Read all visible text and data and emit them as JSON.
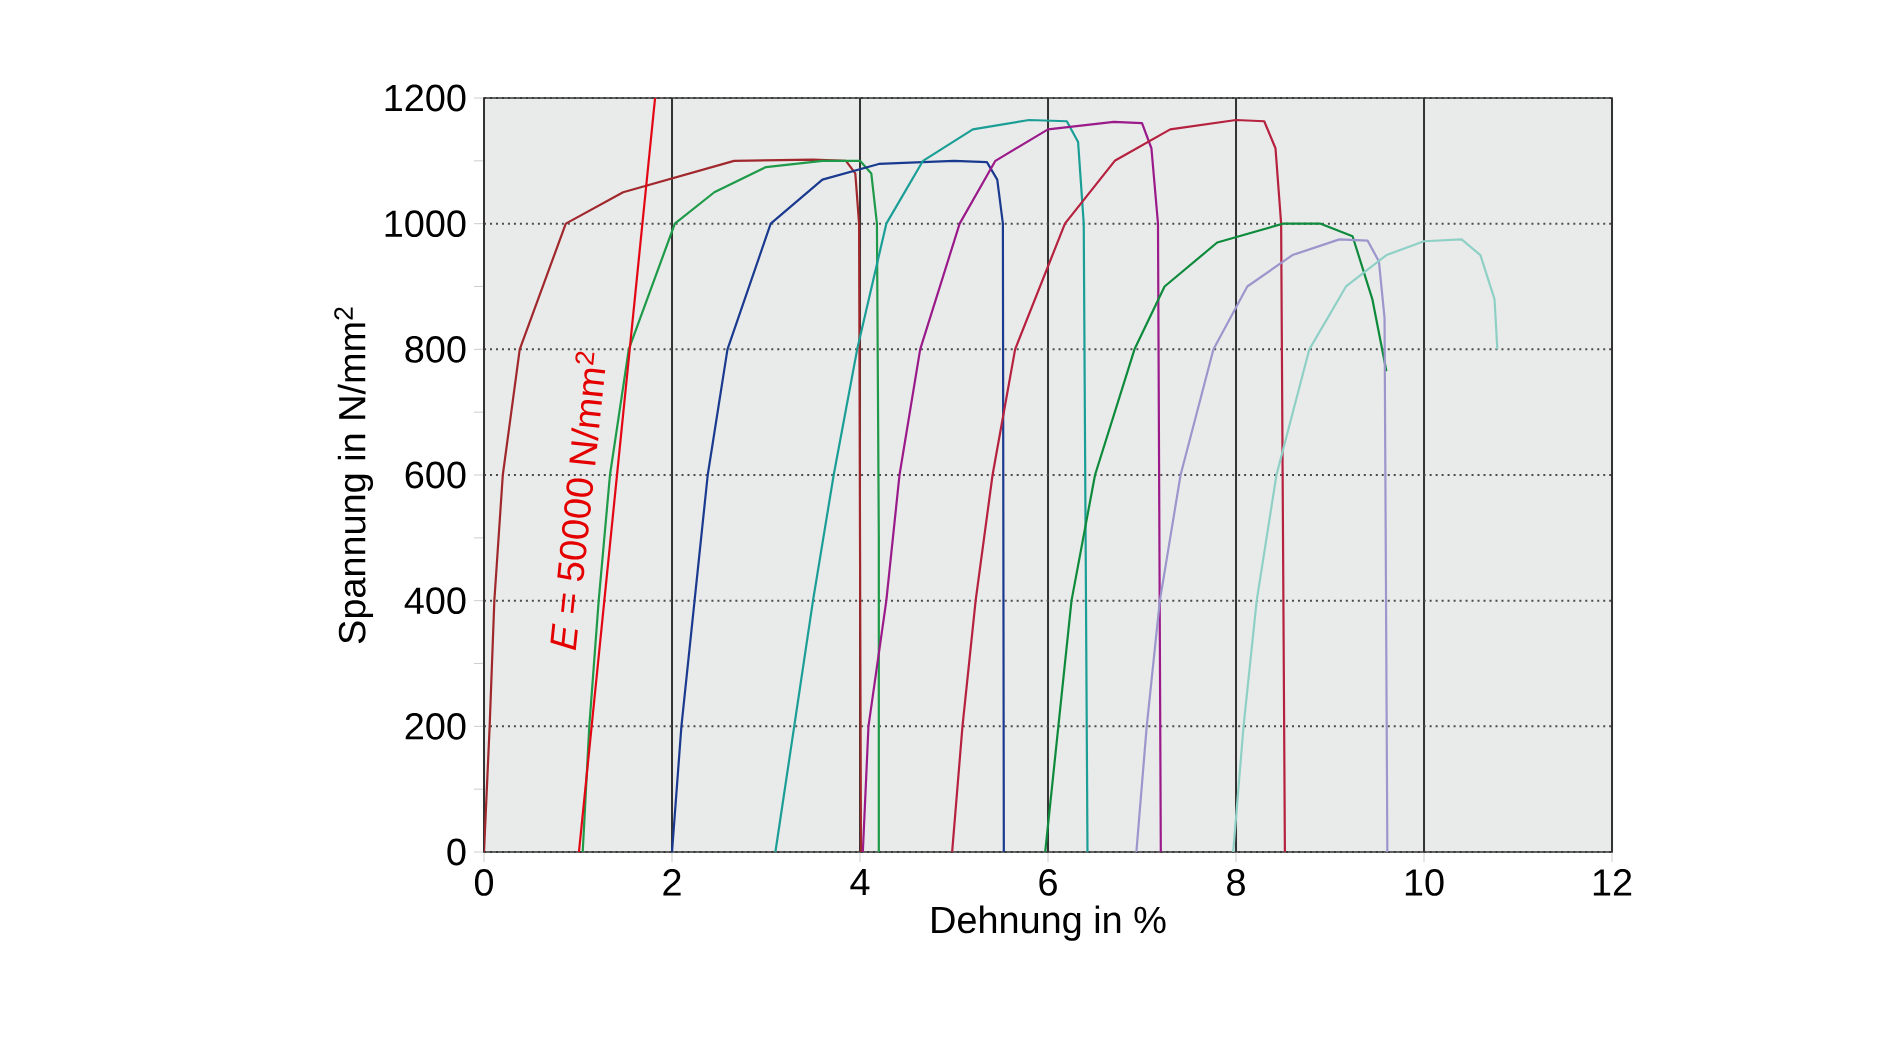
{
  "chart_data": {
    "type": "line",
    "xlabel": "Dehnung in %",
    "ylabel": "Spannung in N/mm$^{2}$",
    "xlim": [
      0,
      12
    ],
    "xticks": [
      0,
      2,
      4,
      6,
      8,
      10,
      12
    ],
    "ylim": [
      0,
      1200
    ],
    "yticks": [
      0,
      200,
      400,
      600,
      800,
      1000,
      1200
    ],
    "grid": true,
    "marker": "none",
    "line_style": "solid",
    "annotations": [
      "*E* = 50000 N/mm$^{2}$"
    ],
    "series": [
      {
        "color": "#a0282d",
        "x": [
          0,
          0.06,
          0.11,
          0.2,
          0.38,
          0.87,
          1.48,
          2.66,
          3.5,
          3.85,
          3.95,
          3.99,
          4.0,
          4.01
        ],
        "values": [
          0,
          200,
          400,
          600,
          800,
          1000,
          1050,
          1100,
          1102,
          1100,
          1080,
          1000,
          500,
          0
        ]
      },
      {
        "color": "#1e9a48",
        "x": [
          1.05,
          1.12,
          1.22,
          1.34,
          1.54,
          2.03,
          2.45,
          3.0,
          3.6,
          4.0,
          4.12,
          4.18,
          4.2,
          4.2
        ],
        "values": [
          0,
          200,
          400,
          600,
          800,
          1000,
          1050,
          1090,
          1100,
          1100,
          1080,
          1000,
          500,
          0
        ]
      },
      {
        "color": "#1a3a8f",
        "x": [
          2.0,
          2.1,
          2.24,
          2.38,
          2.59,
          3.05,
          3.6,
          4.2,
          5.0,
          5.35,
          5.46,
          5.52,
          5.53
        ],
        "values": [
          0,
          200,
          400,
          600,
          800,
          1000,
          1070,
          1095,
          1100,
          1098,
          1070,
          1000,
          0
        ]
      },
      {
        "color": "#1a9e96",
        "x": [
          3.1,
          3.3,
          3.5,
          3.72,
          3.97,
          4.28,
          4.67,
          5.2,
          5.8,
          6.2,
          6.32,
          6.38,
          6.42
        ],
        "values": [
          0,
          200,
          400,
          600,
          800,
          1000,
          1100,
          1150,
          1165,
          1163,
          1130,
          1000,
          0
        ]
      },
      {
        "color": "#9a1a8a",
        "x": [
          4.03,
          4.09,
          4.28,
          4.42,
          4.64,
          5.06,
          5.44,
          6.0,
          6.7,
          7.0,
          7.1,
          7.17,
          7.2
        ],
        "values": [
          0,
          200,
          400,
          600,
          800,
          1000,
          1100,
          1150,
          1162,
          1160,
          1120,
          1000,
          0
        ]
      },
      {
        "color": "#b5213f",
        "x": [
          4.98,
          5.09,
          5.23,
          5.41,
          5.65,
          6.18,
          6.71,
          7.3,
          8.0,
          8.3,
          8.42,
          8.48,
          8.52
        ],
        "values": [
          0,
          200,
          400,
          600,
          800,
          1000,
          1100,
          1150,
          1165,
          1163,
          1120,
          1000,
          0
        ]
      },
      {
        "color": "#0e8a3c",
        "x": [
          5.97,
          6.11,
          6.25,
          6.5,
          6.92,
          7.24,
          7.8,
          8.5,
          8.9,
          9.24,
          9.45,
          9.6
        ],
        "values": [
          0,
          200,
          400,
          600,
          800,
          900,
          970,
          1000,
          1000,
          980,
          880,
          765
        ]
      },
      {
        "color": "#9b96cc",
        "x": [
          6.94,
          7.05,
          7.19,
          7.41,
          7.76,
          8.12,
          8.6,
          9.1,
          9.4,
          9.52,
          9.58,
          9.61
        ],
        "values": [
          0,
          200,
          400,
          600,
          800,
          900,
          950,
          975,
          973,
          940,
          850,
          0
        ]
      },
      {
        "color": "#8fd0c6",
        "x": [
          7.97,
          8.08,
          8.22,
          8.43,
          8.78,
          9.17,
          9.6,
          10.0,
          10.4,
          10.6,
          10.75,
          10.78
        ],
        "values": [
          0,
          200,
          400,
          600,
          800,
          900,
          950,
          972,
          975,
          950,
          880,
          800
        ]
      },
      {
        "color": "#e30613",
        "x": [
          1.01,
          1.82
        ],
        "values": [
          0,
          1200
        ]
      }
    ]
  }
}
